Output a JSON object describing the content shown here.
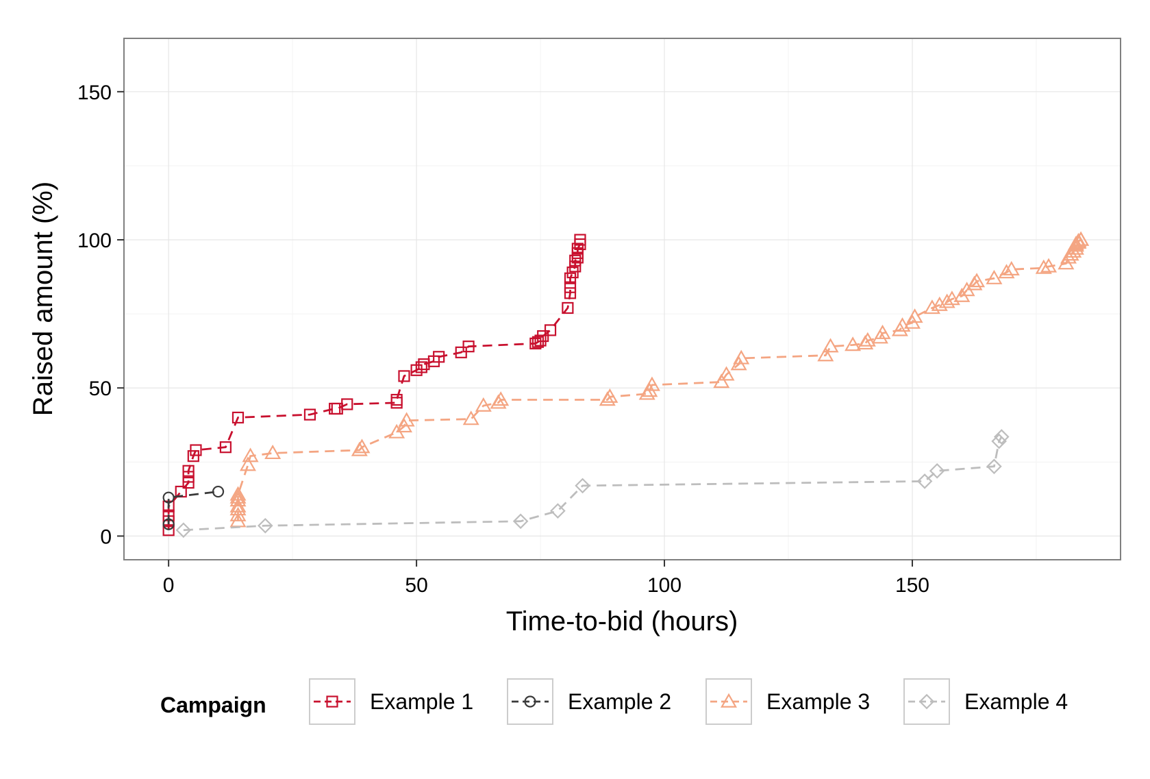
{
  "chart_data": {
    "type": "line",
    "title": "",
    "xlabel": "Time-to-bid (hours)",
    "ylabel": "Raised amount (%)",
    "xlim": [
      -9,
      192
    ],
    "ylim": [
      -8,
      168
    ],
    "xticks": [
      0,
      50,
      100,
      150
    ],
    "yticks": [
      0,
      50,
      100,
      150
    ],
    "grid": true,
    "legend": {
      "title": "Campaign",
      "position": "bottom"
    },
    "series": [
      {
        "name": "Example 1",
        "color": "#c8102e",
        "marker": "square",
        "x": [
          0,
          0,
          0,
          0,
          2.5,
          4,
          4,
          4,
          5,
          5.5,
          11.5,
          14,
          28.5,
          33.5,
          34,
          36,
          46,
          46,
          47.5,
          50,
          51,
          51.5,
          53.5,
          54.5,
          59,
          60.5,
          74,
          74.5,
          75,
          75.5,
          77,
          80.5,
          81,
          81,
          81,
          81.5,
          82,
          82,
          82.5,
          82.5,
          82.5,
          83,
          83
        ],
        "y": [
          2,
          5,
          7,
          10,
          15,
          18,
          20,
          22,
          27,
          29,
          30,
          40,
          41,
          43,
          43,
          44.5,
          45,
          46,
          54,
          56,
          57,
          58,
          59,
          60.5,
          62,
          64,
          65,
          65.5,
          66,
          67.5,
          69.5,
          77,
          82,
          84,
          87,
          89,
          91,
          93,
          94,
          95.5,
          97,
          98.5,
          100
        ]
      },
      {
        "name": "Example 2",
        "color": "#3a3a3a",
        "marker": "circle",
        "x": [
          0,
          0,
          10
        ],
        "y": [
          4,
          13,
          15
        ]
      },
      {
        "name": "Example 3",
        "color": "#f4a582",
        "marker": "triangle",
        "x": [
          14,
          14,
          14,
          14,
          14,
          14,
          14,
          16,
          16.5,
          21,
          38.5,
          39,
          46,
          47.5,
          48,
          61,
          63.5,
          66.5,
          67,
          88.5,
          89,
          96.5,
          97,
          97.5,
          111.5,
          112.5,
          115,
          115.5,
          132.5,
          133.5,
          138,
          140.5,
          141,
          143.5,
          144,
          147.5,
          148,
          150,
          150.5,
          154,
          155.5,
          157,
          158,
          160,
          161,
          162.5,
          163,
          166.5,
          169,
          170,
          176.5,
          177.5,
          181,
          181.5,
          182,
          182.5,
          183,
          183,
          183,
          183.5,
          183.5,
          184,
          184
        ],
        "y": [
          5,
          7,
          9,
          10,
          12,
          13,
          14,
          24,
          27,
          28,
          29,
          30,
          35,
          37,
          39,
          39.5,
          44,
          45,
          46,
          46,
          47,
          48,
          49,
          51,
          52,
          54.5,
          58,
          60,
          61,
          64,
          64.5,
          65,
          66,
          67,
          68.5,
          69.5,
          71,
          72,
          74,
          77,
          78,
          79,
          80,
          81,
          83,
          85,
          86,
          87,
          89,
          90,
          90.5,
          91,
          92,
          94,
          95,
          96,
          97,
          98,
          98.5,
          99,
          99.5,
          100,
          100
        ]
      },
      {
        "name": "Example 4",
        "color": "#bdbdbd",
        "marker": "diamond",
        "x": [
          3,
          19.5,
          71,
          78.5,
          83.5,
          152.5,
          155,
          166.5,
          167.5,
          168
        ],
        "y": [
          2,
          3.5,
          5,
          8.5,
          17,
          18.5,
          22,
          23.5,
          32,
          33.5
        ]
      }
    ]
  }
}
